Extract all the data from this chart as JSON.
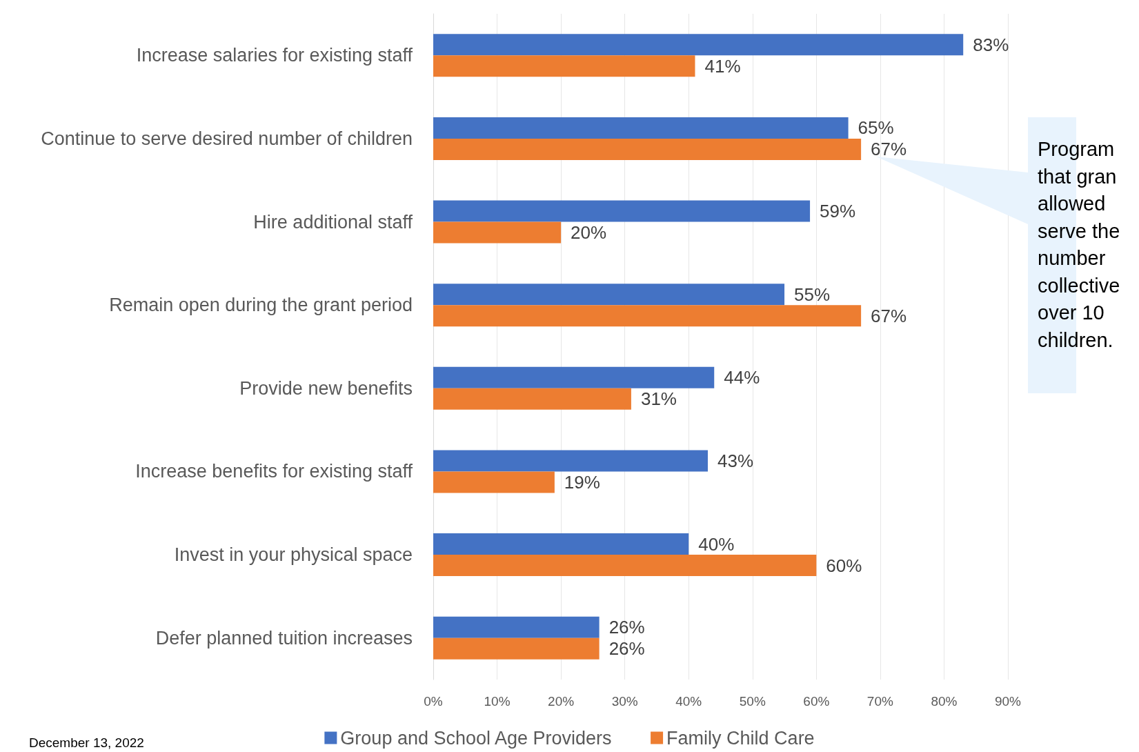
{
  "chart_data": {
    "type": "bar",
    "orientation": "horizontal",
    "categories": [
      "Increase salaries for existing staff",
      "Continue to serve desired number of children",
      "Hire additional staff",
      "Remain open during the grant period",
      "Provide new benefits",
      "Increase benefits for existing staff",
      "Invest in your physical space",
      "Defer planned tuition increases"
    ],
    "series": [
      {
        "name": "Group and School Age Providers",
        "color": "#4472c4",
        "values": [
          83,
          65,
          59,
          55,
          44,
          43,
          40,
          26
        ],
        "value_labels": [
          "83%",
          "65%",
          "59%",
          "55%",
          "44%",
          "43%",
          "40%",
          "26%"
        ]
      },
      {
        "name": "Family Child Care",
        "color": "#ed7d31",
        "values": [
          41,
          67,
          20,
          67,
          31,
          19,
          60,
          26
        ],
        "value_labels": [
          "41%",
          "67%",
          "20%",
          "67%",
          "31%",
          "19%",
          "60%",
          "26%"
        ]
      }
    ],
    "xlim": [
      0,
      90
    ],
    "xticks": [
      {
        "value": 0,
        "label": "0%"
      },
      {
        "value": 10,
        "label": "10%"
      },
      {
        "value": 20,
        "label": "20%"
      },
      {
        "value": 30,
        "label": "30%"
      },
      {
        "value": 40,
        "label": "40%"
      },
      {
        "value": 50,
        "label": "50%"
      },
      {
        "value": 60,
        "label": "60%"
      },
      {
        "value": 70,
        "label": "70%"
      },
      {
        "value": 80,
        "label": "80%"
      },
      {
        "value": 90,
        "label": "90%"
      }
    ],
    "grid": "x",
    "legend": "bottom",
    "annotations": [
      "Program\nthat gran\nallowed\nserve the\nnumber\ncollective\nover 10\nchildren.",
      "December 13, 2022"
    ]
  }
}
